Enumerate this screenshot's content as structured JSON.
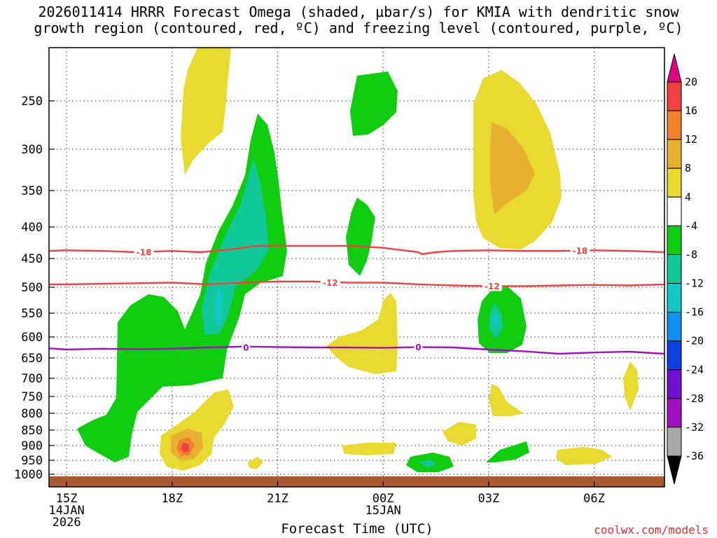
{
  "title": {
    "line1": "2026011414 HRRR Forecast Omega (shaded, µbar/s) for KMIA with dendritic snow",
    "line2": "growth region (contoured, red, ºC) and freezing level (contoured, purple, ºC)"
  },
  "chart_data": {
    "type": "contour-filled time-height cross section",
    "title": "2026011414 HRRR Forecast Omega (shaded, µbar/s) for KMIA with dendritic snow growth region (contoured, red, ºC) and freezing level (contoured, purple, ºC)",
    "xlabel": "Forecast Time (UTC)",
    "ylabel": "Pressure (hPa)",
    "x_hours_range": [
      14.5,
      32
    ],
    "x_ticks": [
      {
        "hour": 15,
        "line1": "15Z",
        "line2": "14JAN",
        "line3": "2026"
      },
      {
        "hour": 18,
        "line1": "18Z",
        "line2": "",
        "line3": ""
      },
      {
        "hour": 21,
        "line1": "21Z",
        "line2": "",
        "line3": ""
      },
      {
        "hour": 24,
        "line1": "00Z",
        "line2": "15JAN",
        "line3": ""
      },
      {
        "hour": 27,
        "line1": "03Z",
        "line2": "",
        "line3": ""
      },
      {
        "hour": 30,
        "line1": "06Z",
        "line2": "",
        "line3": ""
      }
    ],
    "y_ticks": [
      250,
      300,
      350,
      400,
      450,
      500,
      550,
      600,
      650,
      700,
      750,
      800,
      850,
      900,
      950,
      1000
    ],
    "y_tick_labels": [
      "250",
      "300",
      "350",
      "400",
      "450",
      "500",
      "550",
      "600",
      "650",
      "700",
      "750",
      "800",
      "850",
      "900",
      "950",
      "1000"
    ],
    "colorbar": {
      "labels": [
        "20",
        "16",
        "12",
        "8",
        "4",
        "-4",
        "-8",
        "-12",
        "-16",
        "-20",
        "-24",
        "-28",
        "-32",
        "-36"
      ],
      "colors": [
        "#e2007f",
        "#f04040",
        "#f08030",
        "#e8b030",
        "#e8da30",
        "#ffffff",
        "#10cc10",
        "#10c898",
        "#10c8c8",
        "#1090f0",
        "#1040e0",
        "#7010d0",
        "#a010c0",
        "#a8a8a8",
        "#000000"
      ]
    },
    "contours": [
      {
        "name": "dgz-minus18",
        "value_label": "-18",
        "color": "#f04040",
        "points": [
          [
            14.5,
            438
          ],
          [
            15,
            437
          ],
          [
            16,
            438
          ],
          [
            17,
            440
          ],
          [
            18,
            438
          ],
          [
            18.8,
            440
          ],
          [
            19.6,
            436
          ],
          [
            20.4,
            430
          ],
          [
            21,
            430
          ],
          [
            22,
            430
          ],
          [
            23,
            430
          ],
          [
            24,
            433
          ],
          [
            25,
            440
          ],
          [
            25.1,
            443
          ],
          [
            25.5,
            440
          ],
          [
            26,
            438
          ],
          [
            27,
            437
          ],
          [
            28,
            438
          ],
          [
            29,
            438
          ],
          [
            30,
            437
          ],
          [
            31,
            438
          ],
          [
            32,
            440
          ]
        ],
        "labels": [
          [
            17.2,
            440
          ],
          [
            29.6,
            438
          ]
        ]
      },
      {
        "name": "dgz-minus12",
        "value_label": "-12",
        "color": "#f04040",
        "points": [
          [
            14.5,
            495
          ],
          [
            15,
            495
          ],
          [
            16,
            494
          ],
          [
            17,
            493
          ],
          [
            18,
            492
          ],
          [
            19,
            495
          ],
          [
            20,
            492
          ],
          [
            21,
            490
          ],
          [
            22,
            490
          ],
          [
            23,
            492
          ],
          [
            24,
            492
          ],
          [
            25,
            495
          ],
          [
            26,
            497
          ],
          [
            27,
            498
          ],
          [
            28,
            498
          ],
          [
            29,
            497
          ],
          [
            30,
            496
          ],
          [
            31,
            497
          ],
          [
            32,
            495
          ]
        ],
        "labels": [
          [
            22.5,
            492
          ],
          [
            27.1,
            498
          ]
        ]
      },
      {
        "name": "freezing-level",
        "value_label": "0",
        "color": "#a010c0",
        "points": [
          [
            14.5,
            627
          ],
          [
            15,
            630
          ],
          [
            16,
            628
          ],
          [
            17,
            629
          ],
          [
            18,
            628
          ],
          [
            19,
            625
          ],
          [
            20,
            623
          ],
          [
            21,
            624
          ],
          [
            22,
            625
          ],
          [
            23,
            625
          ],
          [
            24,
            626
          ],
          [
            25,
            624
          ],
          [
            26,
            625
          ],
          [
            27,
            630
          ],
          [
            28,
            634
          ],
          [
            29,
            640
          ],
          [
            30,
            637
          ],
          [
            31,
            635
          ],
          [
            32,
            640
          ]
        ],
        "labels": [
          [
            20.1,
            625
          ],
          [
            25,
            624
          ]
        ]
      }
    ],
    "shaded_regions": [
      {
        "name": "upward-motion-band-18z-21z",
        "value_range": "-4 to -12",
        "color": "#10cc10"
      },
      {
        "name": "upward-motion-band-00z",
        "value_range": "-4 to -8",
        "color": "#10cc10"
      },
      {
        "name": "upward-motion-03z",
        "value_range": "-4 to -12",
        "color": "#10cc10"
      },
      {
        "name": "downward-motion-03z-upper",
        "value_range": "4 to 12",
        "color": "#e8da30"
      },
      {
        "name": "downward-motion-18z-low",
        "value_range": "4 to 16",
        "color": "#e8da30"
      }
    ]
  },
  "credit": "coolwx.com/models"
}
